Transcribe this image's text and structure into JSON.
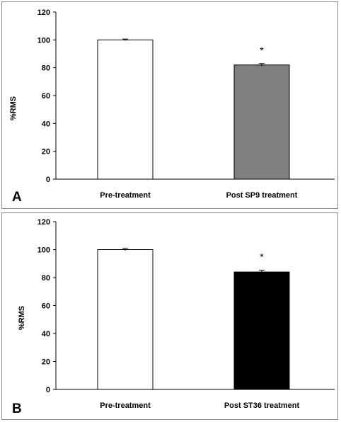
{
  "chart_data": [
    {
      "type": "bar",
      "panel_label": "A",
      "categories": [
        "Pre-treatment",
        "Post SP9 treatment"
      ],
      "values": [
        100,
        82
      ],
      "error": [
        0.6,
        1.0
      ],
      "bar_colors": [
        "#ffffff",
        "#808080"
      ],
      "annotations": [
        "",
        "*"
      ],
      "ylabel": "%RMS",
      "xlabel": "",
      "ylim": [
        0,
        120
      ],
      "yticks": [
        "0",
        "20",
        "40",
        "60",
        "80",
        "100",
        "120"
      ],
      "grid": false
    },
    {
      "type": "bar",
      "panel_label": "B",
      "categories": [
        "Pre-treatment",
        "Post ST36 treatment"
      ],
      "values": [
        100,
        84
      ],
      "error": [
        0.8,
        1.2
      ],
      "bar_colors": [
        "#ffffff",
        "#000000"
      ],
      "annotations": [
        "",
        "*"
      ],
      "ylabel": "%RMS",
      "xlabel": "",
      "ylim": [
        0,
        120
      ],
      "yticks": [
        "0",
        "20",
        "40",
        "60",
        "80",
        "100",
        "120"
      ],
      "grid": false
    }
  ]
}
